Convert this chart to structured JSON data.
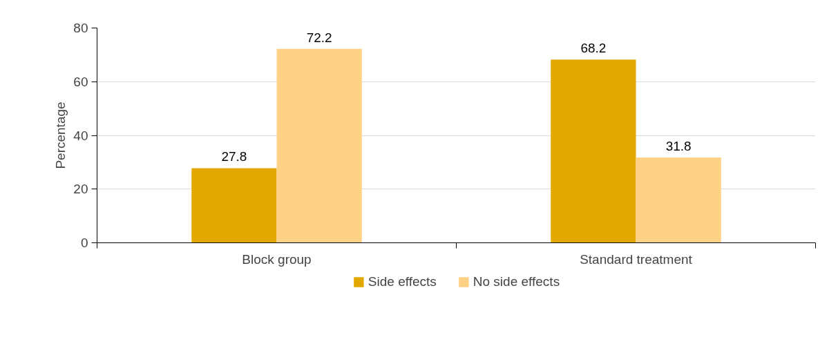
{
  "chart_data": {
    "type": "bar",
    "ylabel": "Percentage",
    "categories": [
      "Block group",
      "Standard treatment"
    ],
    "series": [
      {
        "name": "Side effects",
        "color": "#e2a800",
        "values": [
          27.8,
          68.2
        ]
      },
      {
        "name": "No side effects",
        "color": "#ffd185",
        "values": [
          72.2,
          31.8
        ]
      }
    ],
    "ylim": [
      0,
      80
    ],
    "yticks": [
      0,
      20,
      40,
      60,
      80
    ],
    "grid": "y",
    "legend": "bottom",
    "data_labels": true
  }
}
